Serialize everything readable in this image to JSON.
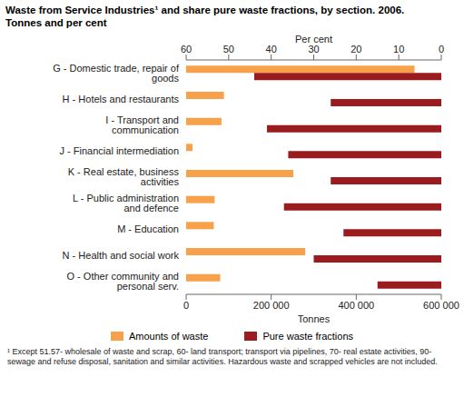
{
  "chart_data": {
    "type": "bar",
    "orientation": "horizontal",
    "title": "Waste from Service Industries¹ and share pure waste fractions, by section. 2006.",
    "subtitle": "Tonnes and per cent",
    "x_label": "Tonnes",
    "x2_label": "Per cent",
    "categories": [
      "G - Domestic trade, repair of goods",
      "H - Hotels and restaurants",
      "I - Transport and communication",
      "J - Financial intermediation",
      "K - Real estate, business activities",
      "L - Public administration and defence",
      "M - Education",
      "N - Health and social work",
      "O - Other community and personal serv."
    ],
    "series": [
      {
        "name": "Amounts of waste",
        "color": "#f7a24a",
        "values": [
          537000,
          89000,
          83000,
          15000,
          252000,
          67000,
          65000,
          280000,
          80000
        ]
      },
      {
        "name": "Pure waste fractions",
        "color": "#9b1c1f",
        "axis": "y2",
        "values": [
          44,
          26,
          41,
          36,
          26,
          37,
          23,
          30,
          15
        ]
      }
    ],
    "ylim": [
      0,
      600000
    ],
    "yticks": [
      0,
      {
        "value": 200000,
        "label": "200 000"
      },
      {
        "value": 400000,
        "label": "400 000"
      },
      {
        "value": 600000,
        "label": "600 000"
      }
    ],
    "y2lim": [
      0,
      60
    ],
    "y2ticks": [
      0,
      10,
      20,
      30,
      40,
      50,
      60
    ],
    "grid": false,
    "legend": "bottom",
    "annotations": [
      "¹ Except 51.57- wholesale of waste and scrap, 60- land transport; transport via pipelines, 70- real estate activities, 90- sewage and refuse disposal, sanitation and similar activities. Hazardous waste and scrapped vehicles are not included."
    ]
  }
}
